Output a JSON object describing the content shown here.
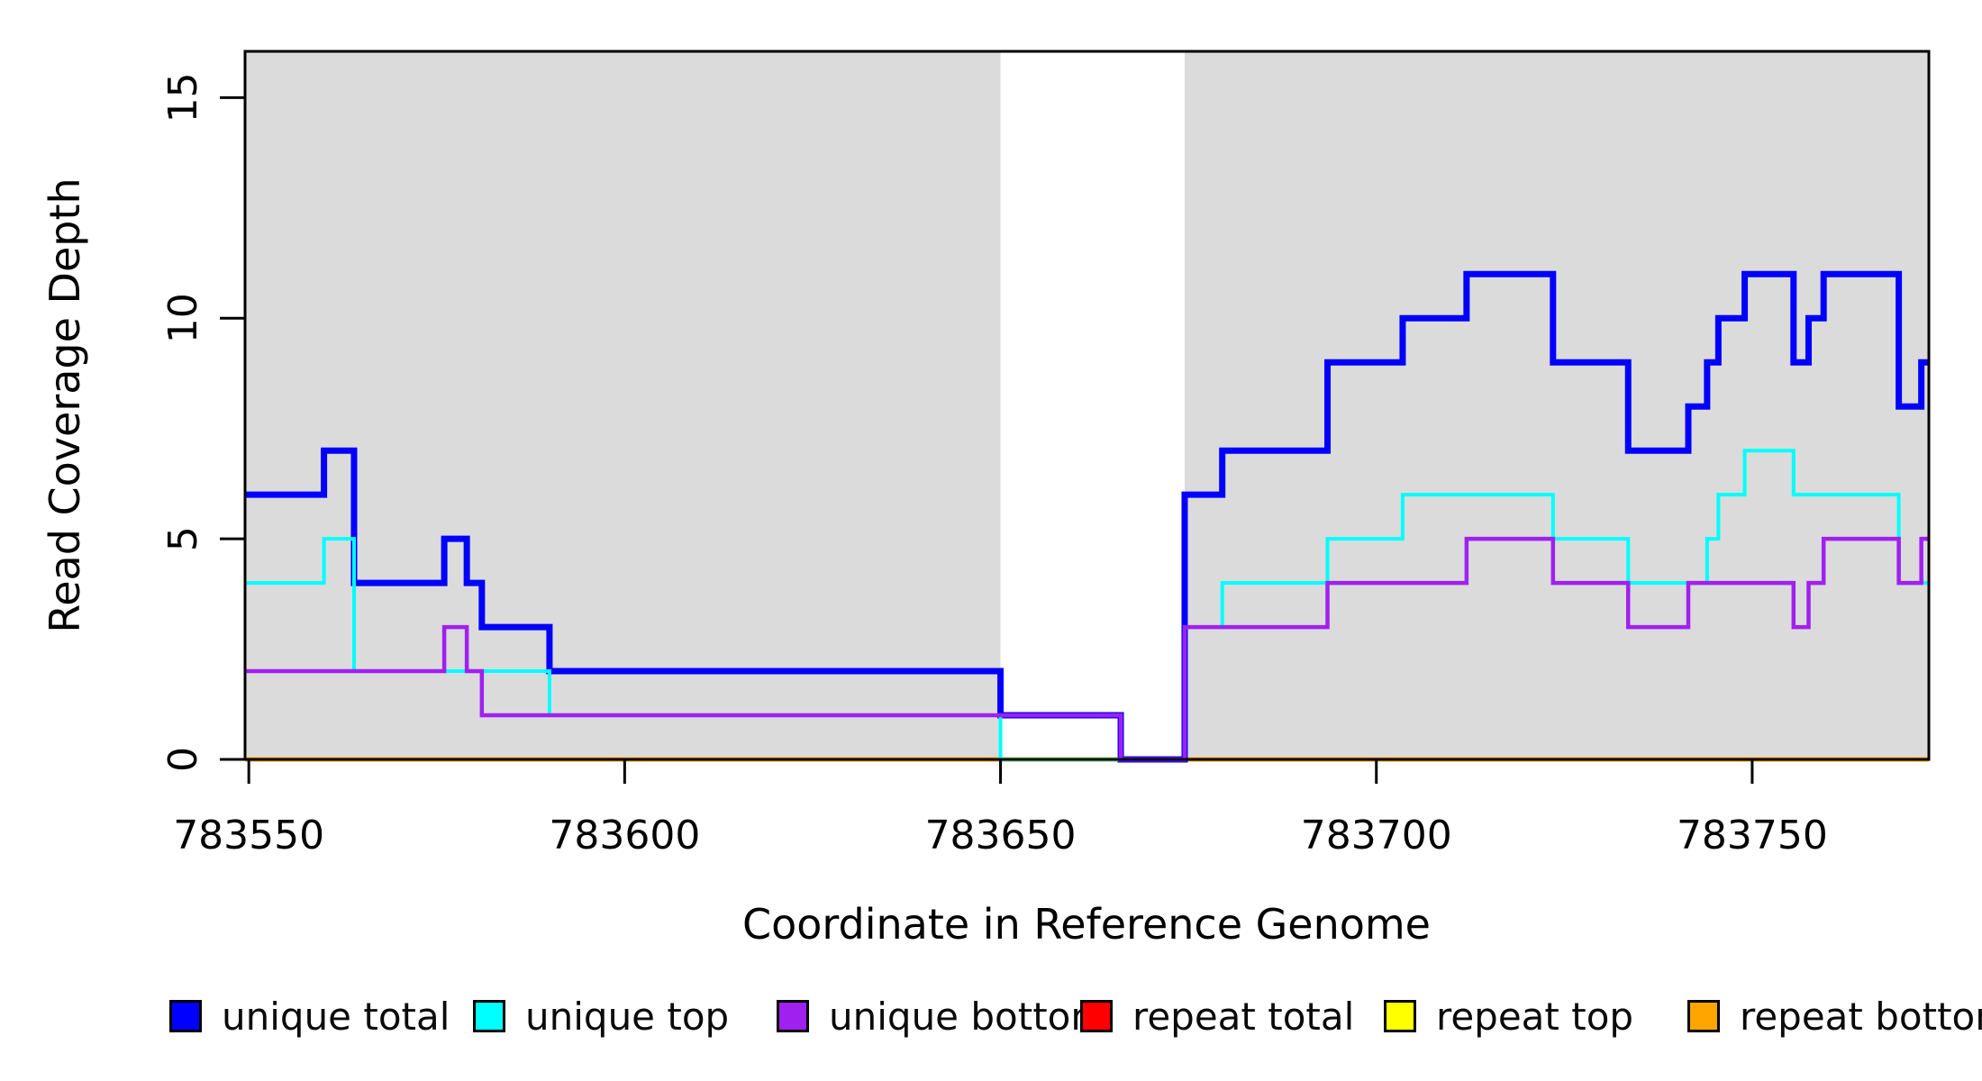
{
  "figure": {
    "background_color": "#FFFFFF",
    "shade_color": "#DBDBDB",
    "axis_color": "#000000"
  },
  "chart_data": {
    "type": "line",
    "subtype": "step",
    "title": "",
    "xlabel": "Coordinate in Reference Genome",
    "ylabel": "Read Coverage Depth",
    "xlim": [
      783549.5,
      783773.5
    ],
    "ylim": [
      0,
      16.05
    ],
    "x_ticks": [
      783550,
      783600,
      783650,
      783700,
      783750
    ],
    "y_ticks": [
      0,
      5,
      10,
      15
    ],
    "grid": false,
    "legend_position": "bottom",
    "shaded_regions": [
      {
        "name": "gray-block-left",
        "from": 783549.5,
        "to": 783650
      },
      {
        "name": "gray-block-right",
        "from": 783674.5,
        "to": 783773.5
      }
    ],
    "series": [
      {
        "name": "repeat total",
        "color": "#FF0000",
        "width": 5,
        "steps": [
          [
            783549.5,
            0
          ]
        ],
        "end": 783773.5
      },
      {
        "name": "repeat top",
        "color": "#FFFF00",
        "width": 5,
        "steps": [
          [
            783549.5,
            0
          ]
        ],
        "end": 783773.5
      },
      {
        "name": "repeat bottom",
        "color": "#FFA500",
        "width": 5,
        "steps": [
          [
            783549.5,
            0
          ]
        ],
        "end": 783773.5
      },
      {
        "name": "unique total",
        "color": "#0000FF",
        "width": 7,
        "steps": [
          [
            783549.5,
            6
          ],
          [
            783560,
            7
          ],
          [
            783564,
            4
          ],
          [
            783576,
            5
          ],
          [
            783579,
            4
          ],
          [
            783581,
            3
          ],
          [
            783590,
            2
          ],
          [
            783650,
            1
          ],
          [
            783666,
            0
          ],
          [
            783674.5,
            6
          ],
          [
            783679.5,
            7
          ],
          [
            783693.5,
            9
          ],
          [
            783703.5,
            10
          ],
          [
            783712,
            11
          ],
          [
            783723.5,
            9
          ],
          [
            783733.5,
            7
          ],
          [
            783741.5,
            8
          ],
          [
            783744,
            9
          ],
          [
            783745.5,
            10
          ],
          [
            783749,
            11
          ],
          [
            783755.5,
            9
          ],
          [
            783757.5,
            10
          ],
          [
            783759.5,
            11
          ],
          [
            783769.5,
            8
          ],
          [
            783772.5,
            9
          ]
        ],
        "end": 783773.5
      },
      {
        "name": "unique top",
        "color": "#00FFFF",
        "width": 4,
        "steps": [
          [
            783549.5,
            4
          ],
          [
            783560,
            5
          ],
          [
            783564,
            2
          ],
          [
            783590,
            1
          ],
          [
            783650,
            0
          ],
          [
            783674.5,
            3
          ],
          [
            783679.5,
            4
          ],
          [
            783693.5,
            5
          ],
          [
            783703.5,
            6
          ],
          [
            783723.5,
            5
          ],
          [
            783733.5,
            4
          ],
          [
            783744,
            5
          ],
          [
            783745.5,
            6
          ],
          [
            783749,
            7
          ],
          [
            783755.5,
            6
          ],
          [
            783769.5,
            4
          ]
        ],
        "end": 783773.5
      },
      {
        "name": "unique bottom",
        "color": "#A020F0",
        "width": 4.5,
        "steps": [
          [
            783549.5,
            2
          ],
          [
            783576,
            3
          ],
          [
            783579,
            2
          ],
          [
            783581,
            1
          ],
          [
            783666,
            0
          ],
          [
            783674.5,
            3
          ],
          [
            783693.5,
            4
          ],
          [
            783712,
            5
          ],
          [
            783723.5,
            4
          ],
          [
            783733.5,
            3
          ],
          [
            783741.5,
            4
          ],
          [
            783755.5,
            3
          ],
          [
            783757.5,
            4
          ],
          [
            783759.5,
            5
          ],
          [
            783769.5,
            4
          ],
          [
            783772.5,
            5
          ]
        ],
        "end": 783773.5
      }
    ],
    "legend": [
      {
        "label": "unique total",
        "color": "#0000FF"
      },
      {
        "label": "unique top",
        "color": "#00FFFF"
      },
      {
        "label": "unique bottom",
        "color": "#A020F0"
      },
      {
        "label": "repeat total",
        "color": "#FF0000"
      },
      {
        "label": "repeat top",
        "color": "#FFFF00"
      },
      {
        "label": "repeat bottom",
        "color": "#FFA500"
      }
    ]
  }
}
